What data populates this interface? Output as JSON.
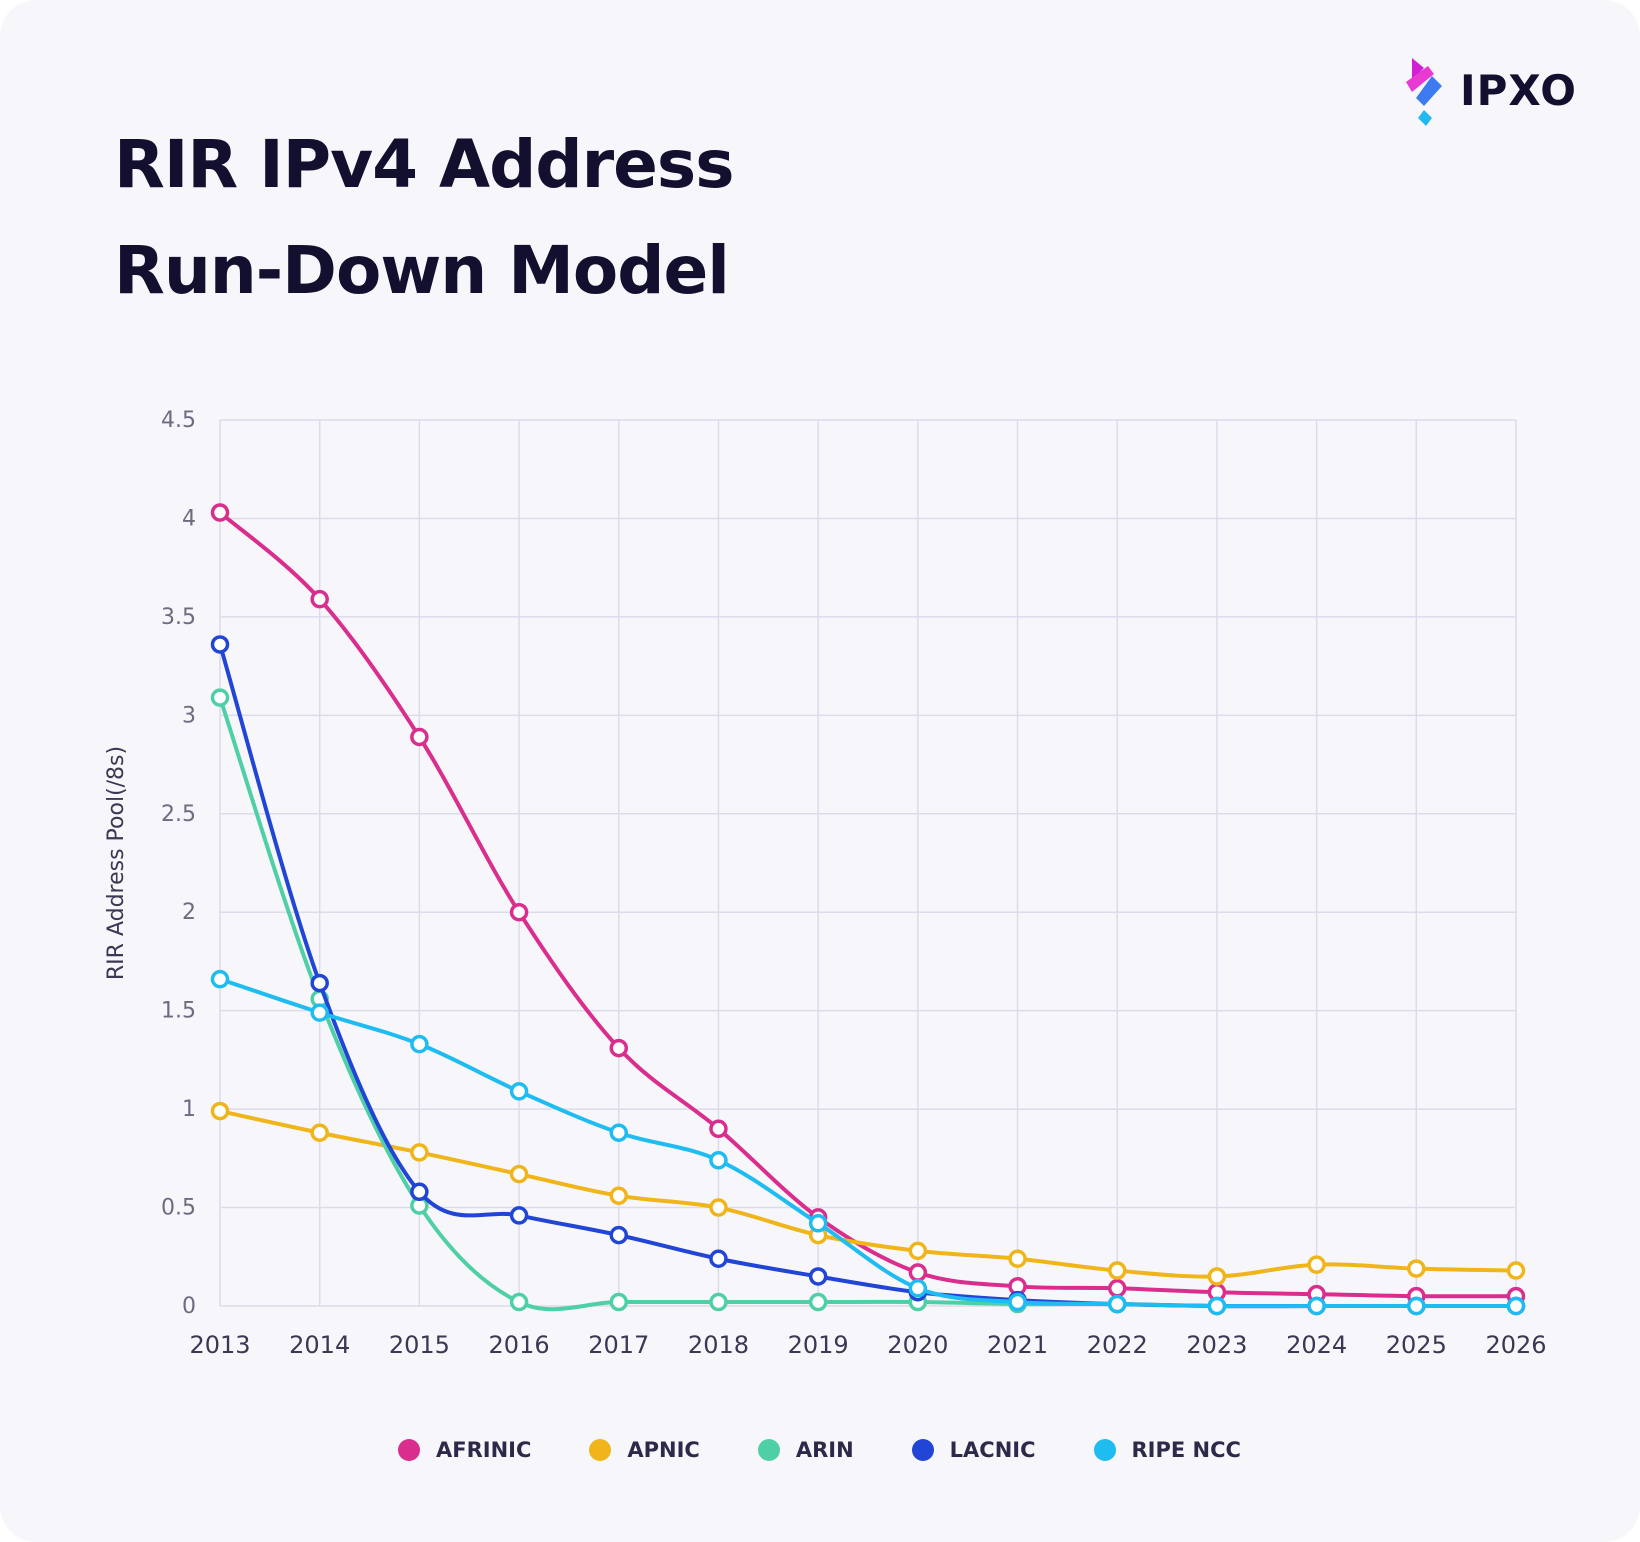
{
  "title": {
    "line1": "RIR IPv4 Address",
    "line2": "Run-Down Model"
  },
  "logo": {
    "text": "IPXO"
  },
  "chart_data": {
    "type": "line",
    "title": "RIR IPv4 Address Run-Down Model",
    "xlabel": "",
    "ylabel": "RIR Address Pool(/8s)",
    "x": [
      "2013",
      "2014",
      "2015",
      "2016",
      "2017",
      "2018",
      "2019",
      "2020",
      "2021",
      "2022",
      "2023",
      "2024",
      "2025",
      "2026"
    ],
    "ylim": [
      0,
      4.5
    ],
    "yticks": [
      "0",
      "0.5",
      "1",
      "1.5",
      "2",
      "2.5",
      "3",
      "3.5",
      "4",
      "4.5"
    ],
    "grid": true,
    "legend_position": "bottom",
    "series": [
      {
        "name": "AFRINIC",
        "color": "#d92e8d",
        "values": [
          4.03,
          3.59,
          2.89,
          2.0,
          1.31,
          0.9,
          0.45,
          0.17,
          0.1,
          0.09,
          0.07,
          0.06,
          0.05,
          0.05
        ]
      },
      {
        "name": "APNIC",
        "color": "#f0b51a",
        "values": [
          0.99,
          0.88,
          0.78,
          0.67,
          0.56,
          0.5,
          0.36,
          0.28,
          0.24,
          0.18,
          0.15,
          0.21,
          0.19,
          0.18
        ]
      },
      {
        "name": "ARIN",
        "color": "#4fcfa5",
        "values": [
          3.09,
          1.56,
          0.51,
          0.02,
          0.02,
          0.02,
          0.02,
          0.02,
          0.01,
          0.01,
          0.0,
          0.0,
          0.0,
          0.0
        ]
      },
      {
        "name": "LACNIC",
        "color": "#2145d4",
        "values": [
          3.36,
          1.64,
          0.58,
          0.46,
          0.36,
          0.24,
          0.15,
          0.07,
          0.03,
          0.01,
          0.0,
          0.0,
          0.0,
          0.0
        ]
      },
      {
        "name": "RIPE NCC",
        "color": "#1fbcf2",
        "values": [
          1.66,
          1.49,
          1.33,
          1.09,
          0.88,
          0.74,
          0.42,
          0.09,
          0.02,
          0.01,
          0.0,
          0.0,
          0.0,
          0.0
        ]
      }
    ]
  }
}
